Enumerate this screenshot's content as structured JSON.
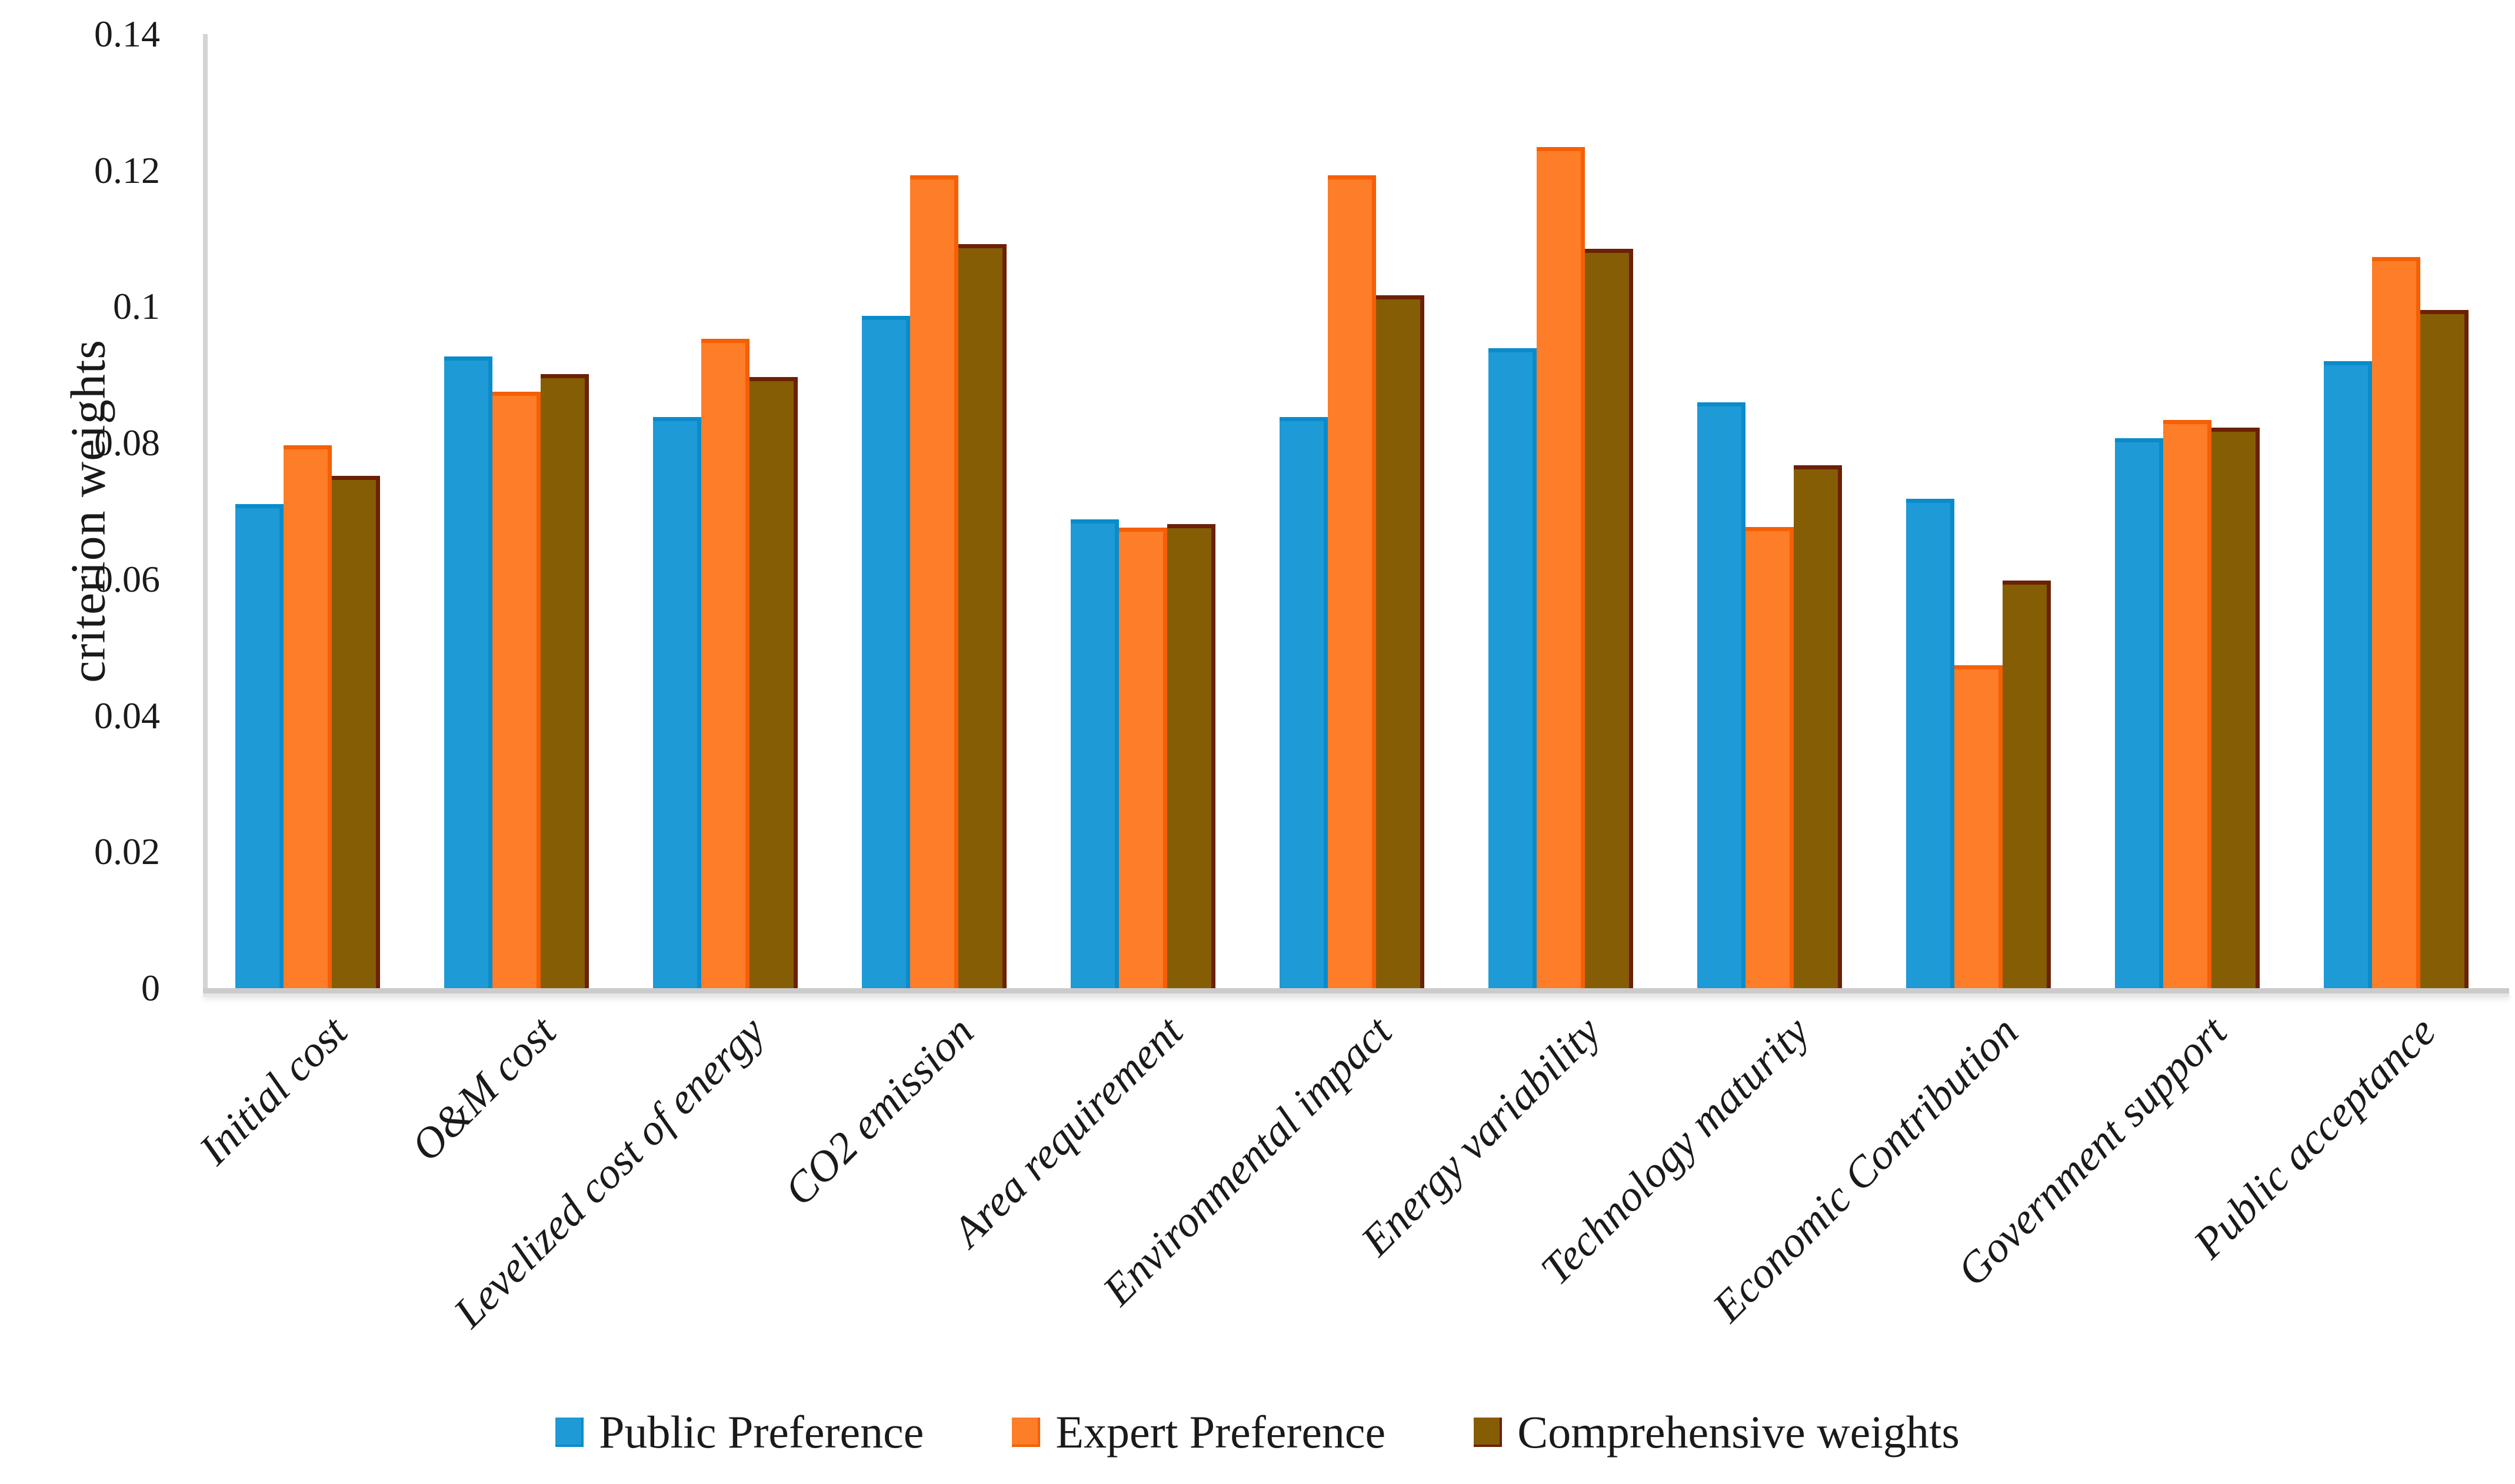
{
  "chart_data": {
    "type": "bar",
    "title": "",
    "xlabel": "",
    "ylabel": "criterion weights",
    "ylim": [
      0,
      0.14
    ],
    "ytick_labels": [
      "0",
      "0.02",
      "0.04",
      "0.06",
      "0.08",
      "0.1",
      "0.12",
      "0.14"
    ],
    "grid": false,
    "legend_position": "bottom-center",
    "categories": [
      "Initial cost",
      "O&M cost",
      "Levelized cost of energy",
      "CO2 emission",
      "Area requirement",
      "Environmental impact",
      "Energy variability",
      "Technology maturity",
      "Economic Contribution",
      "Government support",
      "Public acceptance"
    ],
    "series": [
      {
        "name": "Public Preference",
        "color": "#1e9ad6",
        "edge_color": "#0a8ccb",
        "values": [
          0.071,
          0.0927,
          0.0838,
          0.0987,
          0.0688,
          0.0838,
          0.0939,
          0.086,
          0.0718,
          0.0807,
          0.092
        ]
      },
      {
        "name": "Expert Preference",
        "color": "#fd7d28",
        "edge_color": "#f55f05",
        "values": [
          0.0797,
          0.0875,
          0.0953,
          0.1193,
          0.0676,
          0.1193,
          0.1234,
          0.0677,
          0.0474,
          0.0834,
          0.1073
        ]
      },
      {
        "name": "Comprehensive weights",
        "color": "#855d05",
        "edge_color": "#6b2105",
        "values": [
          0.0752,
          0.0901,
          0.0897,
          0.1092,
          0.0681,
          0.1017,
          0.1085,
          0.0767,
          0.0598,
          0.0823,
          0.0995
        ]
      }
    ]
  }
}
